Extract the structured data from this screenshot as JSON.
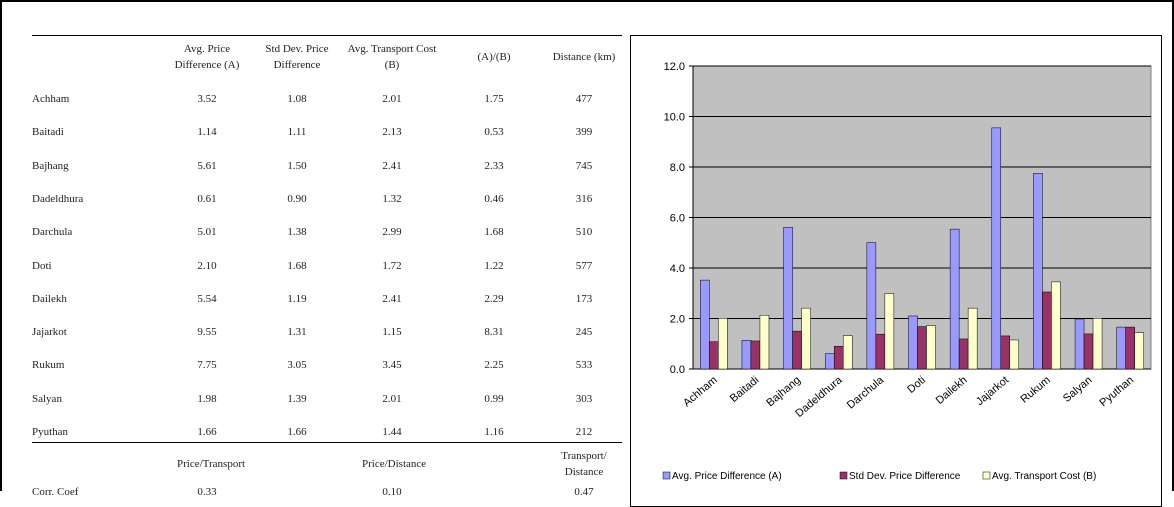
{
  "table": {
    "header": [
      "Avg. Price Difference (A)",
      "Std Dev. Price Difference",
      "Avg. Transport Cost (B)",
      "(A)/(B)",
      "Distance (km)"
    ],
    "rows": [
      {
        "name": "Achham",
        "cells": [
          "3.52",
          "1.08",
          "2.01",
          "1.75",
          "477"
        ]
      },
      {
        "name": "Baitadi",
        "cells": [
          "1.14",
          "1.11",
          "2.13",
          "0.53",
          "399"
        ]
      },
      {
        "name": "Bajhang",
        "cells": [
          "5.61",
          "1.50",
          "2.41",
          "2.33",
          "745"
        ]
      },
      {
        "name": "Dadeldhura",
        "cells": [
          "0.61",
          "0.90",
          "1.32",
          "0.46",
          "316"
        ]
      },
      {
        "name": "Darchula",
        "cells": [
          "5.01",
          "1.38",
          "2.99",
          "1.68",
          "510"
        ]
      },
      {
        "name": "Doti",
        "cells": [
          "2.10",
          "1.68",
          "1.72",
          "1.22",
          "577"
        ]
      },
      {
        "name": "Dailekh",
        "cells": [
          "5.54",
          "1.19",
          "2.41",
          "2.29",
          "173"
        ]
      },
      {
        "name": "Jajarkot",
        "cells": [
          "9.55",
          "1.31",
          "1.15",
          "8.31",
          "245"
        ]
      },
      {
        "name": "Rukum",
        "cells": [
          "7.75",
          "3.05",
          "3.45",
          "2.25",
          "533"
        ]
      },
      {
        "name": "Salyan",
        "cells": [
          "1.98",
          "1.39",
          "2.01",
          "0.99",
          "303"
        ]
      },
      {
        "name": "Pyuthan",
        "cells": [
          "1.66",
          "1.66",
          "1.44",
          "1.16",
          "212"
        ]
      }
    ],
    "footer": {
      "header": [
        "Price/Transport",
        "Price/Distance",
        "Transport/ Distance"
      ],
      "row_label": "Corr. Coef",
      "cells": [
        "0.33",
        "0.10",
        "0.47"
      ]
    }
  },
  "chart_data": {
    "type": "bar",
    "categories": [
      "Achham",
      "Baitadi",
      "Bajhang",
      "Dadeldhura",
      "Darchula",
      "Doti",
      "Dailekh",
      "Jajarkot",
      "Rukum",
      "Salyan",
      "Pyuthan"
    ],
    "series": [
      {
        "name": "Avg. Price Difference (A)",
        "color": "#9999ff",
        "values": [
          3.52,
          1.14,
          5.61,
          0.61,
          5.01,
          2.1,
          5.54,
          9.55,
          7.75,
          1.98,
          1.66
        ]
      },
      {
        "name": "Std Dev. Price Difference",
        "color": "#993366",
        "values": [
          1.08,
          1.11,
          1.5,
          0.9,
          1.38,
          1.68,
          1.19,
          1.31,
          3.05,
          1.39,
          1.66
        ]
      },
      {
        "name": "Avg. Transport Cost (B)",
        "color": "#ffffcc",
        "values": [
          2.01,
          2.13,
          2.41,
          1.32,
          2.99,
          1.72,
          2.41,
          1.15,
          3.45,
          2.01,
          1.44
        ]
      }
    ],
    "ylim": [
      0,
      12
    ],
    "yticks": [
      {
        "value": 0,
        "label": "0.0"
      },
      {
        "value": 2,
        "label": "2.0"
      },
      {
        "value": 4,
        "label": "4.0"
      },
      {
        "value": 6,
        "label": "6.0"
      },
      {
        "value": 8,
        "label": "8.0"
      },
      {
        "value": 10,
        "label": "10.0"
      },
      {
        "value": 12,
        "label": "12.0"
      }
    ],
    "grid": true,
    "legend": "bottom",
    "background": "#c0c0c0"
  }
}
